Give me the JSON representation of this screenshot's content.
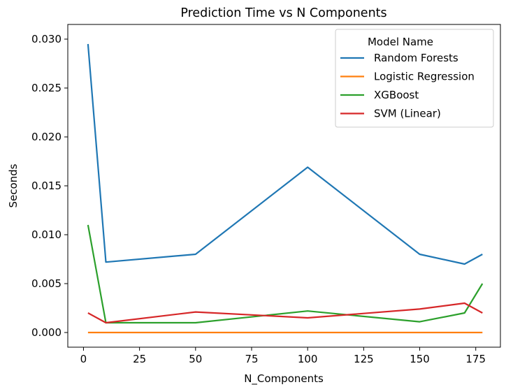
{
  "chart_data": {
    "type": "line",
    "title": "Prediction Time vs N Components",
    "xlabel": "N_Components",
    "ylabel": "Seconds",
    "xlim": [
      -7,
      186
    ],
    "ylim": [
      -0.0015,
      0.0315
    ],
    "xticks": [
      0,
      25,
      50,
      75,
      100,
      125,
      150,
      175
    ],
    "xtick_labels": [
      "0",
      "25",
      "50",
      "75",
      "100",
      "125",
      "150",
      "175"
    ],
    "yticks": [
      0.0,
      0.005,
      0.01,
      0.015,
      0.02,
      0.025,
      0.03
    ],
    "ytick_labels": [
      "0.000",
      "0.005",
      "0.010",
      "0.015",
      "0.020",
      "0.025",
      "0.030"
    ],
    "grid": false,
    "legend": {
      "title": "Model Name",
      "position": "top-right"
    },
    "x": [
      2,
      10,
      50,
      100,
      150,
      170,
      178
    ],
    "series": [
      {
        "name": "Random Forests",
        "color": "#1f77b4",
        "values": [
          0.0295,
          0.0072,
          0.008,
          0.0169,
          0.008,
          0.007,
          0.008
        ]
      },
      {
        "name": "Logistic Regression",
        "color": "#ff7f0e",
        "values": [
          0.0,
          0.0,
          0.0,
          0.0,
          0.0,
          0.0,
          0.0
        ]
      },
      {
        "name": "XGBoost",
        "color": "#2ca02c",
        "values": [
          0.011,
          0.001,
          0.001,
          0.0022,
          0.0011,
          0.002,
          0.005
        ]
      },
      {
        "name": "SVM (Linear)",
        "color": "#d62728",
        "values": [
          0.002,
          0.001,
          0.0021,
          0.0015,
          0.0024,
          0.003,
          0.002
        ]
      }
    ]
  }
}
